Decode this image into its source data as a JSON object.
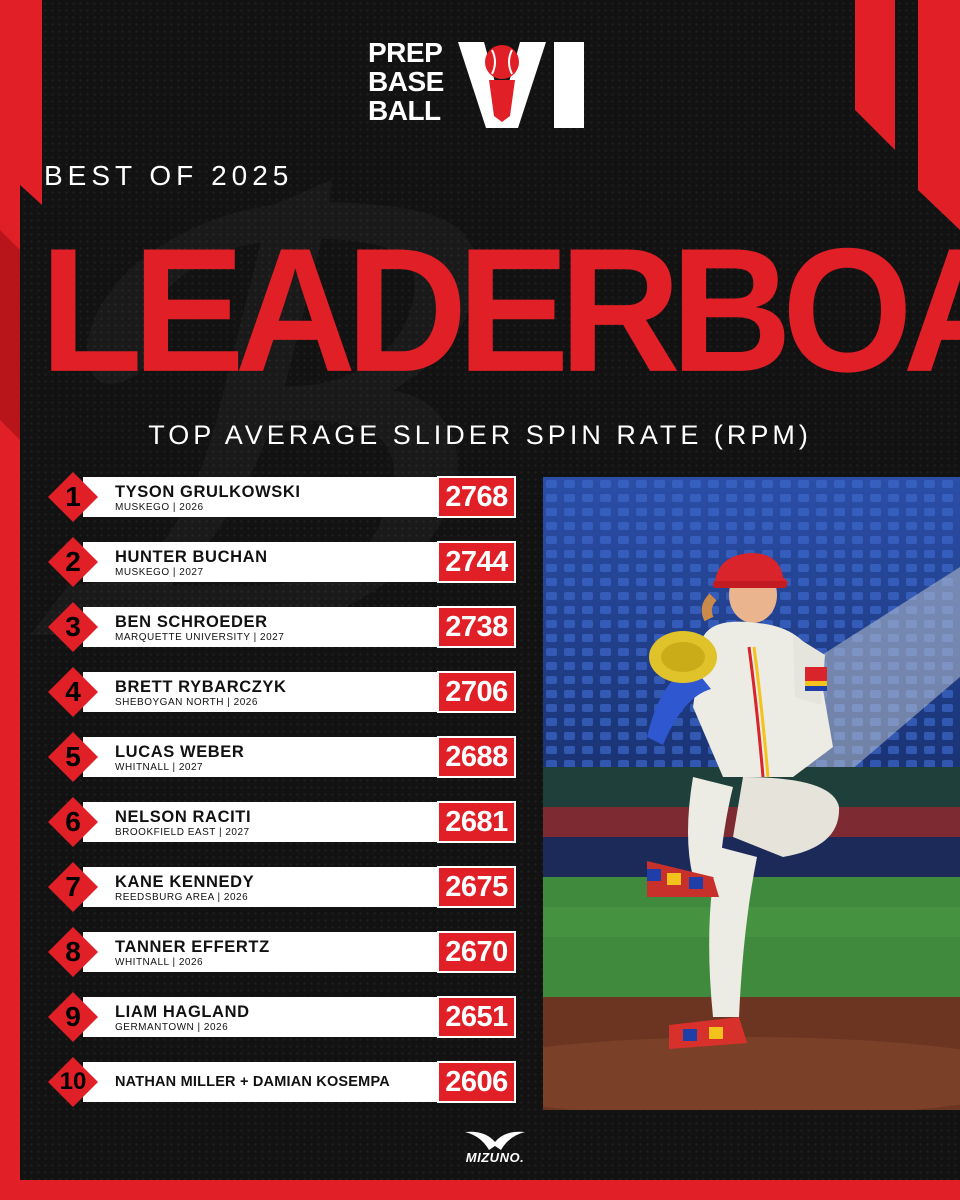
{
  "brand": {
    "logo_words": [
      "PREP",
      "BASE",
      "BALL"
    ],
    "logo_state": "WI",
    "sponsor": "MIZUNO.",
    "accent_color": "#e01f26"
  },
  "header": {
    "kicker": "BEST OF 2025",
    "title": "LEADERBOARD",
    "subtitle": "TOP AVERAGE SLIDER SPIN RATE (RPM)"
  },
  "leaderboard": [
    {
      "rank": "1",
      "name": "TYSON GRULKOWSKI",
      "school": "MUSKEGO | 2026",
      "rpm": "2768"
    },
    {
      "rank": "2",
      "name": "HUNTER BUCHAN",
      "school": "MUSKEGO | 2027",
      "rpm": "2744"
    },
    {
      "rank": "3",
      "name": "BEN SCHROEDER",
      "school": "MARQUETTE UNIVERSITY | 2027",
      "rpm": "2738"
    },
    {
      "rank": "4",
      "name": "BRETT RYBARCZYK",
      "school": "SHEBOYGAN NORTH | 2026",
      "rpm": "2706"
    },
    {
      "rank": "5",
      "name": "LUCAS WEBER",
      "school": "WHITNALL | 2027",
      "rpm": "2688"
    },
    {
      "rank": "6",
      "name": "NELSON RACITI",
      "school": "BROOKFIELD EAST | 2027",
      "rpm": "2681"
    },
    {
      "rank": "7",
      "name": "KANE KENNEDY",
      "school": "REEDSBURG AREA | 2026",
      "rpm": "2675"
    },
    {
      "rank": "8",
      "name": "TANNER EFFERTZ",
      "school": "WHITNALL | 2026",
      "rpm": "2670"
    },
    {
      "rank": "9",
      "name": "LIAM HAGLAND",
      "school": "GERMANTOWN | 2026",
      "rpm": "2651"
    },
    {
      "rank": "10",
      "name": "NATHAN MILLER + DAMIAN KOSEMPA",
      "school": "",
      "rpm": "2606"
    }
  ]
}
